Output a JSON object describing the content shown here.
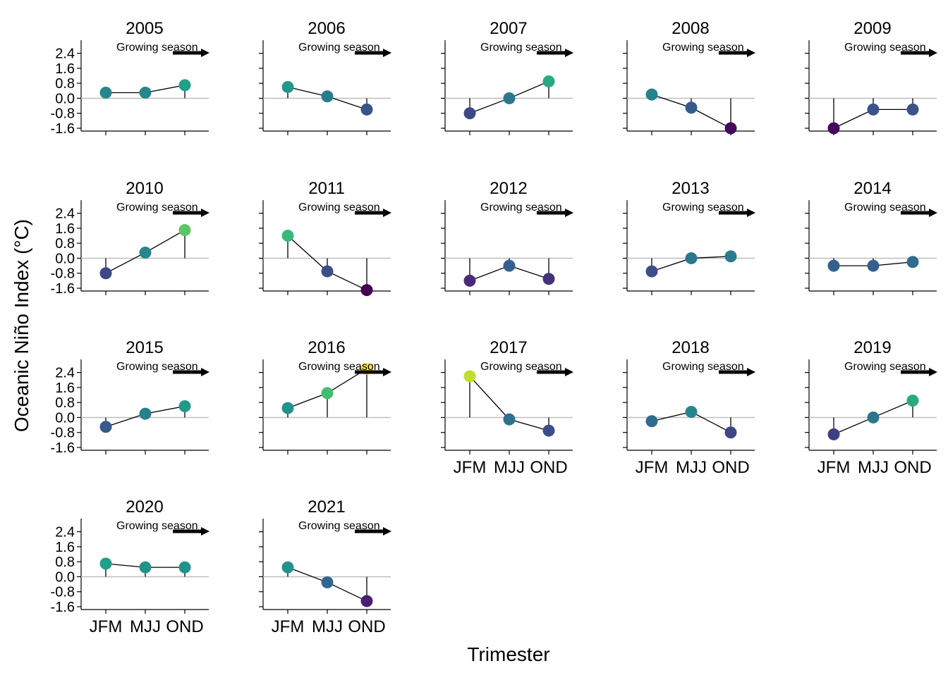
{
  "chart_data": {
    "type": "scatter",
    "facet_by": "year",
    "xlabel": "Trimester",
    "ylabel": "Oceanic Niño Index (°C)",
    "categories": [
      "JFM",
      "MJJ",
      "OND"
    ],
    "y_ticks": [
      "2.4",
      "1.6",
      "0.8",
      "0.0",
      "-0.8",
      "-1.6"
    ],
    "ylim": [
      -1.75,
      3.1
    ],
    "annotation": "Growing season",
    "reference_line": 0,
    "color_scale": "viridis",
    "panels": [
      {
        "year": "2005",
        "values": [
          0.3,
          0.3,
          0.7
        ]
      },
      {
        "year": "2006",
        "values": [
          0.6,
          0.1,
          -0.6
        ]
      },
      {
        "year": "2007",
        "values": [
          -0.8,
          0.0,
          0.9
        ]
      },
      {
        "year": "2008",
        "values": [
          0.2,
          -0.5,
          -1.6
        ]
      },
      {
        "year": "2009",
        "values": [
          -1.6,
          -0.6,
          -0.6
        ]
      },
      {
        "year": "2010",
        "values": [
          -0.8,
          0.3,
          1.5
        ]
      },
      {
        "year": "2011",
        "values": [
          1.2,
          -0.7,
          -1.7
        ]
      },
      {
        "year": "2012",
        "values": [
          -1.2,
          -0.4,
          -1.1
        ]
      },
      {
        "year": "2013",
        "values": [
          -0.7,
          0.0,
          0.1
        ]
      },
      {
        "year": "2014",
        "values": [
          -0.4,
          -0.4,
          -0.2
        ]
      },
      {
        "year": "2015",
        "values": [
          -0.5,
          0.2,
          0.6
        ]
      },
      {
        "year": "2016",
        "values": [
          0.5,
          1.3,
          2.6
        ]
      },
      {
        "year": "2017",
        "values": [
          2.2,
          -0.1,
          -0.7
        ]
      },
      {
        "year": "2018",
        "values": [
          -0.2,
          0.3,
          -0.8
        ]
      },
      {
        "year": "2019",
        "values": [
          -0.9,
          0.0,
          0.9
        ]
      },
      {
        "year": "2020",
        "values": [
          0.7,
          0.5,
          0.5
        ]
      },
      {
        "year": "2021",
        "values": [
          0.5,
          -0.3,
          -1.3
        ]
      }
    ]
  }
}
